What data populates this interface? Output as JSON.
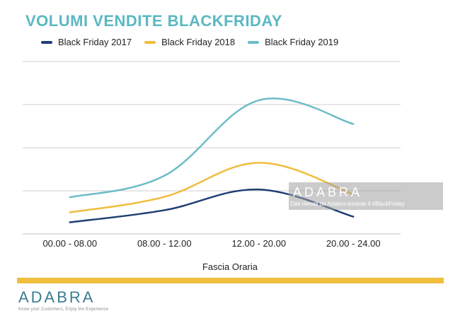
{
  "header": {
    "title": "VOLUMI VENDITE BLACKFRIDAY"
  },
  "colors": {
    "title": "#5bb8c2",
    "grid": "#cfcfcf",
    "accent_bar": "#f0bd3d",
    "logo": "#3a7c93",
    "watermark_bg": "#a0a0a0"
  },
  "chart_data": {
    "type": "line",
    "title": "VOLUMI VENDITE BLACKFRIDAY",
    "categories": [
      "00.00 - 08.00",
      "08.00 - 12.00",
      "12.00 - 20.00",
      "20.00 - 24.00"
    ],
    "xlabel": "Fascia Oraria",
    "ylabel": "",
    "ylim": [
      0,
      4
    ],
    "grid": true,
    "legend_position": "top",
    "smooth": true,
    "series": [
      {
        "name": "Black Friday 2017",
        "color": "#1f3f73",
        "values": [
          0.27,
          0.55,
          1.03,
          0.4
        ]
      },
      {
        "name": "Black Friday 2018",
        "color": "#f0bd3d",
        "values": [
          0.5,
          0.86,
          1.65,
          0.92
        ]
      },
      {
        "name": "Black Friday 2019",
        "color": "#6cbdc8",
        "values": [
          0.85,
          1.35,
          3.1,
          2.55
        ]
      }
    ]
  },
  "watermark": {
    "brand": "ADABRA",
    "note": "Dati rilevati da Adabra durante il #BlackFriday"
  },
  "logo": {
    "brand": "ADABRA",
    "tagline": "Know your Customers, Enjoy the Experience"
  }
}
